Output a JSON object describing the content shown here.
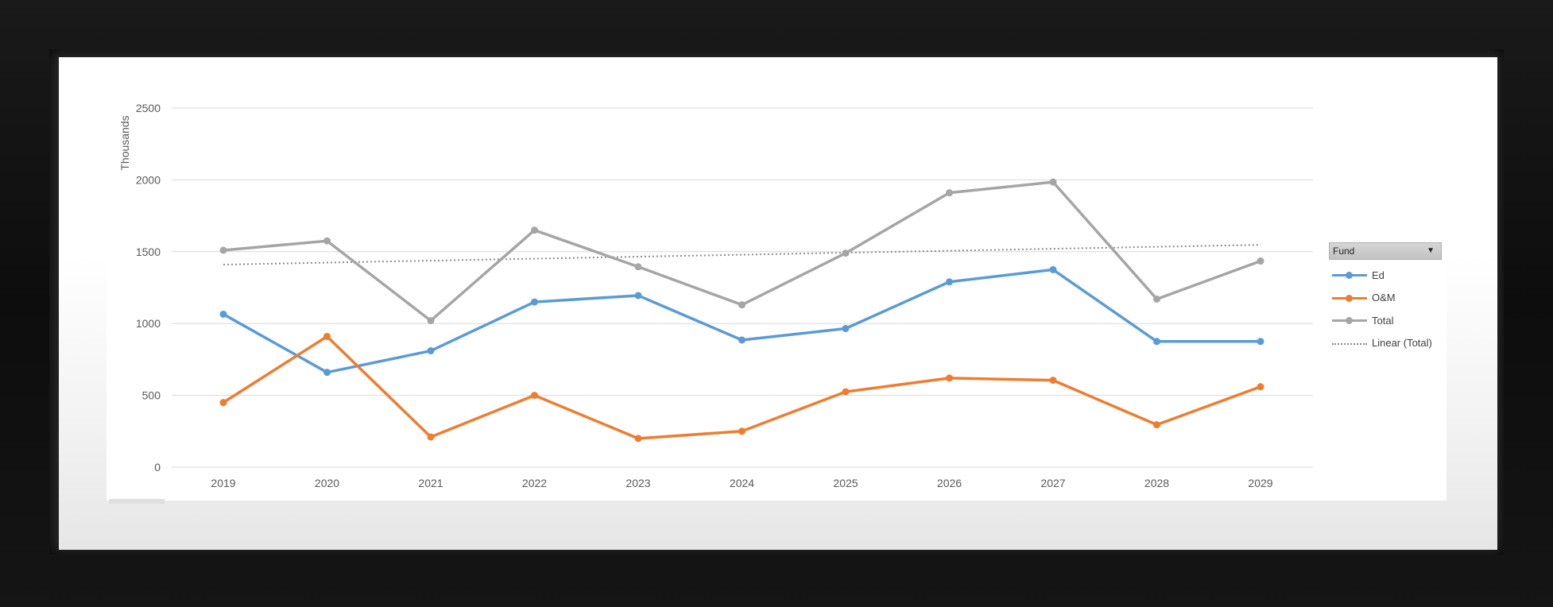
{
  "chart_data": {
    "type": "line",
    "ylabel": "Thousands",
    "ylim": [
      0,
      2500
    ],
    "yticks": [
      0,
      500,
      1000,
      1500,
      2000,
      2500
    ],
    "categories": [
      "2019",
      "2020",
      "2021",
      "2022",
      "2023",
      "2024",
      "2025",
      "2026",
      "2027",
      "2028",
      "2029"
    ],
    "grid": "horizontal",
    "legend_title": "Fund",
    "legend_position": "right",
    "series": [
      {
        "name": "Ed",
        "color": "#5b9bd5",
        "values": [
          1065,
          660,
          810,
          1150,
          1195,
          885,
          965,
          1290,
          1375,
          875,
          875
        ]
      },
      {
        "name": "O&M",
        "color": "#ed7d31",
        "values": [
          450,
          910,
          210,
          500,
          200,
          250,
          525,
          620,
          605,
          295,
          560
        ]
      },
      {
        "name": "Total",
        "color": "#a5a5a5",
        "values": [
          1510,
          1575,
          1020,
          1650,
          1395,
          1130,
          1490,
          1910,
          1985,
          1170,
          1435
        ]
      }
    ],
    "trendline": {
      "name": "Linear (Total)",
      "of": "Total",
      "color": "#8c8c8c",
      "style": "dotted"
    }
  }
}
